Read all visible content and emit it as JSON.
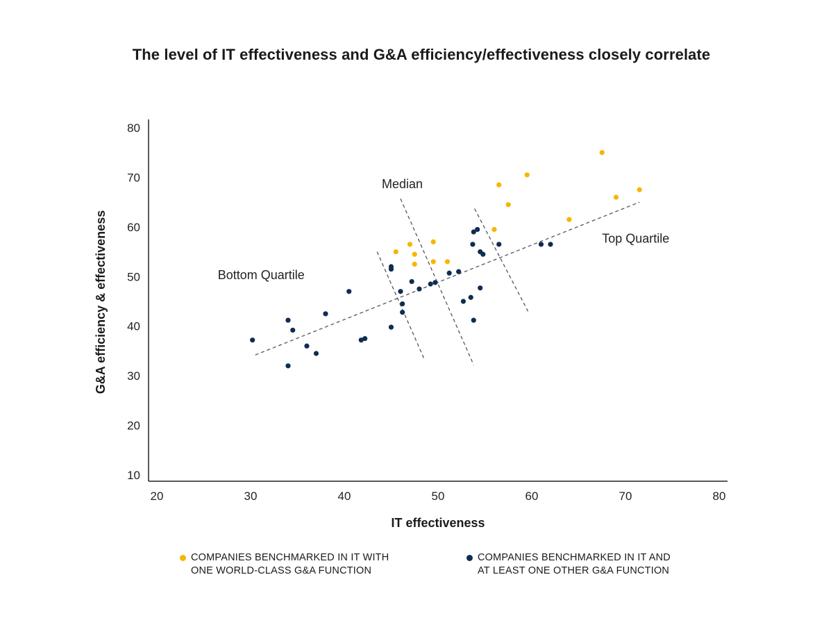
{
  "chart_data": {
    "type": "scatter",
    "title": "The level of IT effectiveness and G&A efficiency/effectiveness closely correlate",
    "xlabel": "IT effectiveness",
    "ylabel": "G&A efficiency & effectiveness",
    "xlim": [
      20,
      80
    ],
    "ylim": [
      10,
      80
    ],
    "xticks": [
      "20",
      "30",
      "40",
      "50",
      "60",
      "70",
      "80"
    ],
    "yticks": [
      "10",
      "20",
      "30",
      "40",
      "50",
      "60",
      "70",
      "80"
    ],
    "grid": false,
    "legend_position": "bottom",
    "series": [
      {
        "name": "COMPANIES BENCHMARKED IN IT WITH ONE WORLD-CLASS G&A FUNCTION",
        "color": "#f5b700",
        "points": [
          [
            45.5,
            55
          ],
          [
            47,
            56.5
          ],
          [
            47.5,
            54.5
          ],
          [
            47.5,
            52.5
          ],
          [
            49.5,
            57
          ],
          [
            49.5,
            53
          ],
          [
            51,
            53
          ],
          [
            56,
            59.5
          ],
          [
            56.5,
            68.5
          ],
          [
            57.5,
            64.5
          ],
          [
            59.5,
            70.5
          ],
          [
            64,
            61.5
          ],
          [
            67.5,
            75
          ],
          [
            69,
            66
          ],
          [
            71.5,
            67.5
          ]
        ]
      },
      {
        "name": "COMPANIES BENCHMARKED IN IT AND AT LEAST ONE OTHER G&A FUNCTION",
        "color": "#0f2d52",
        "points": [
          [
            30.2,
            37.2
          ],
          [
            34,
            41.2
          ],
          [
            34.5,
            39.2
          ],
          [
            34,
            32
          ],
          [
            36,
            36
          ],
          [
            37,
            34.5
          ],
          [
            38,
            42.5
          ],
          [
            40.5,
            47
          ],
          [
            41.8,
            37.2
          ],
          [
            42.2,
            37.5
          ],
          [
            45,
            52
          ],
          [
            45,
            51.5
          ],
          [
            45,
            39.8
          ],
          [
            46,
            47
          ],
          [
            46.2,
            44.5
          ],
          [
            46.2,
            42.8
          ],
          [
            47.2,
            49
          ],
          [
            48,
            47.5
          ],
          [
            49.2,
            48.5
          ],
          [
            49.7,
            48.8
          ],
          [
            51.2,
            50.7
          ],
          [
            52.2,
            51
          ],
          [
            52.7,
            45
          ],
          [
            53.5,
            45.8
          ],
          [
            53.7,
            56.5
          ],
          [
            53.8,
            59
          ],
          [
            53.8,
            41.2
          ],
          [
            54.2,
            59.5
          ],
          [
            54.5,
            55
          ],
          [
            54.5,
            47.7
          ],
          [
            54.8,
            54.5
          ],
          [
            56.5,
            56.5
          ],
          [
            61,
            56.5
          ],
          [
            62,
            56.5
          ]
        ]
      }
    ],
    "trendline": {
      "x": [
        30.5,
        71.5
      ],
      "y": [
        34.2,
        65
      ]
    },
    "quartile_lines": [
      {
        "x": [
          43.5,
          48.5
        ],
        "y": [
          55,
          33.5
        ]
      },
      {
        "x": [
          46,
          53.8
        ],
        "y": [
          65.7,
          32.2
        ]
      },
      {
        "x": [
          53.9,
          59.6
        ],
        "y": [
          63.7,
          43
        ]
      }
    ],
    "annotations": {
      "bottom_quartile": {
        "text": "Bottom Quartile",
        "x": 26.5,
        "y": 49.5
      },
      "median": {
        "text": "Median",
        "x": 44,
        "y": 67.8
      },
      "top_quartile": {
        "text": "Top Quartile",
        "x": 67.5,
        "y": 56.8
      }
    }
  },
  "legend": {
    "yellow": {
      "line1": "COMPANIES BENCHMARKED IN IT WITH",
      "line2": "ONE WORLD-CLASS G&A FUNCTION",
      "color": "#f5b700"
    },
    "navy": {
      "line1": "COMPANIES BENCHMARKED IN IT AND",
      "line2": "AT LEAST ONE OTHER G&A FUNCTION",
      "color": "#0f2d52"
    }
  }
}
